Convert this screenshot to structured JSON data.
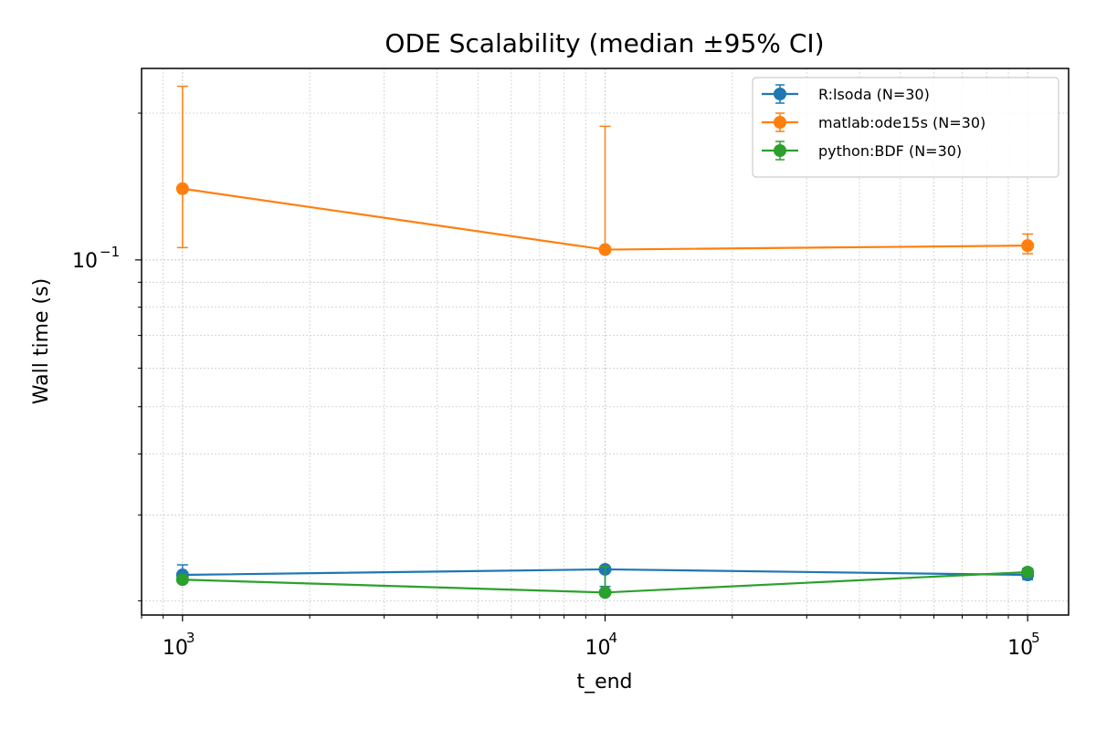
{
  "chart_data": {
    "type": "line",
    "title": "ODE Scalability (median ±95% CI)",
    "xlabel": "t_end",
    "ylabel": "Wall time (s)",
    "xscale": "log",
    "yscale": "log",
    "x": [
      1000,
      10000,
      100000
    ],
    "x_tick_labels": [
      {
        "value": 1000,
        "base": "10",
        "exp": "3"
      },
      {
        "value": 10000,
        "base": "10",
        "exp": "4"
      },
      {
        "value": 100000,
        "base": "10",
        "exp": "5"
      }
    ],
    "y_tick_labels": [
      {
        "value": 0.1,
        "base": "10",
        "exp": "−1"
      }
    ],
    "xlim": [
      800,
      125000
    ],
    "ylim": [
      0.0187,
      0.247
    ],
    "grid": true,
    "legend_position": "top-right",
    "series": [
      {
        "name": "R:lsoda (N=30)",
        "color": "#1f77b4",
        "values": [
          0.0226,
          0.0232,
          0.0226
        ],
        "ci_low": [
          0.0223,
          0.0214,
          0.0221
        ],
        "ci_high": [
          0.0237,
          0.0235,
          0.0233
        ]
      },
      {
        "name": "matlab:ode15s (N=30)",
        "color": "#ff7f0e",
        "values": [
          0.14,
          0.105,
          0.107
        ],
        "ci_low": [
          0.106,
          0.104,
          0.103
        ],
        "ci_high": [
          0.227,
          0.188,
          0.113
        ]
      },
      {
        "name": "python:BDF (N=30)",
        "color": "#2ca02c",
        "values": [
          0.0221,
          0.0208,
          0.0229
        ],
        "ci_low": [
          0.0218,
          0.0206,
          0.0226
        ],
        "ci_high": [
          0.0224,
          0.0235,
          0.0232
        ]
      }
    ]
  }
}
